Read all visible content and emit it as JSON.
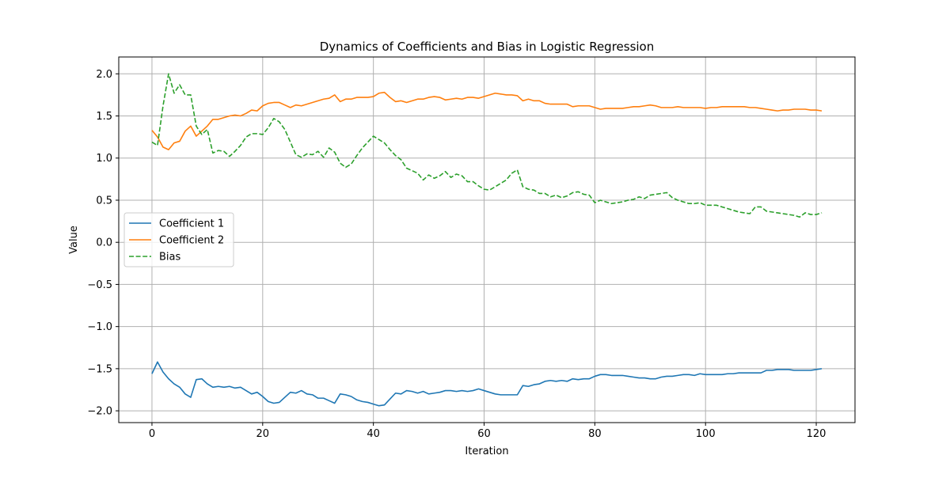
{
  "chart_data": {
    "type": "line",
    "title": "Dynamics of Coefficients and Bias in Logistic Regression",
    "xlabel": "Iteration",
    "ylabel": "Value",
    "xlim": [
      -6,
      127
    ],
    "ylim": [
      -2.14,
      2.2
    ],
    "x_ticks": [
      0,
      20,
      40,
      60,
      80,
      100,
      120
    ],
    "x_tick_labels": [
      "0",
      "20",
      "40",
      "60",
      "80",
      "100",
      "120"
    ],
    "y_ticks": [
      -2.0,
      -1.5,
      -1.0,
      -0.5,
      0.0,
      0.5,
      1.0,
      1.5,
      2.0
    ],
    "y_tick_labels": [
      "−2.0",
      "−1.5",
      "−1.0",
      "−0.5",
      "0.0",
      "0.5",
      "1.0",
      "1.5",
      "2.0"
    ],
    "grid": true,
    "legend_position": "center-left",
    "x": [
      0,
      1,
      2,
      3,
      4,
      5,
      6,
      7,
      8,
      9,
      10,
      11,
      12,
      13,
      14,
      15,
      16,
      17,
      18,
      19,
      20,
      21,
      22,
      23,
      24,
      25,
      26,
      27,
      28,
      29,
      30,
      31,
      32,
      33,
      34,
      35,
      36,
      37,
      38,
      39,
      40,
      41,
      42,
      43,
      44,
      45,
      46,
      47,
      48,
      49,
      50,
      51,
      52,
      53,
      54,
      55,
      56,
      57,
      58,
      59,
      60,
      61,
      62,
      63,
      64,
      65,
      66,
      67,
      68,
      69,
      70,
      71,
      72,
      73,
      74,
      75,
      76,
      77,
      78,
      79,
      80,
      81,
      82,
      83,
      84,
      85,
      86,
      87,
      88,
      89,
      90,
      91,
      92,
      93,
      94,
      95,
      96,
      97,
      98,
      99,
      100,
      101,
      102,
      103,
      104,
      105,
      106,
      107,
      108,
      109,
      110,
      111,
      112,
      113,
      114,
      115,
      116,
      117,
      118,
      119,
      120,
      121
    ],
    "series": [
      {
        "name": "Coefficient 1",
        "color": "#1f77b4",
        "style": "solid",
        "values": [
          -1.56,
          -1.42,
          -1.54,
          -1.62,
          -1.68,
          -1.72,
          -1.8,
          -1.84,
          -1.63,
          -1.62,
          -1.68,
          -1.72,
          -1.71,
          -1.72,
          -1.71,
          -1.73,
          -1.72,
          -1.76,
          -1.8,
          -1.78,
          -1.83,
          -1.89,
          -1.91,
          -1.9,
          -1.84,
          -1.78,
          -1.79,
          -1.76,
          -1.8,
          -1.81,
          -1.85,
          -1.85,
          -1.88,
          -1.91,
          -1.8,
          -1.81,
          -1.83,
          -1.87,
          -1.89,
          -1.9,
          -1.92,
          -1.94,
          -1.93,
          -1.86,
          -1.79,
          -1.8,
          -1.76,
          -1.77,
          -1.79,
          -1.77,
          -1.8,
          -1.79,
          -1.78,
          -1.76,
          -1.76,
          -1.77,
          -1.76,
          -1.77,
          -1.76,
          -1.74,
          -1.76,
          -1.78,
          -1.8,
          -1.81,
          -1.81,
          -1.81,
          -1.81,
          -1.7,
          -1.71,
          -1.69,
          -1.68,
          -1.65,
          -1.64,
          -1.65,
          -1.64,
          -1.65,
          -1.62,
          -1.63,
          -1.62,
          -1.62,
          -1.59,
          -1.57,
          -1.57,
          -1.58,
          -1.58,
          -1.58,
          -1.59,
          -1.6,
          -1.61,
          -1.61,
          -1.62,
          -1.62,
          -1.6,
          -1.59,
          -1.59,
          -1.58,
          -1.57,
          -1.57,
          -1.58,
          -1.56,
          -1.57,
          -1.57,
          -1.57,
          -1.57,
          -1.56,
          -1.56,
          -1.55,
          -1.55,
          -1.55,
          -1.55,
          -1.55,
          -1.52,
          -1.52,
          -1.51,
          -1.51,
          -1.51,
          -1.52,
          -1.52,
          -1.52,
          -1.52,
          -1.51,
          -1.5
        ]
      },
      {
        "name": "Coefficient 2",
        "color": "#ff7f0e",
        "style": "solid",
        "values": [
          1.33,
          1.25,
          1.13,
          1.1,
          1.18,
          1.2,
          1.32,
          1.38,
          1.26,
          1.32,
          1.38,
          1.46,
          1.46,
          1.48,
          1.5,
          1.51,
          1.5,
          1.53,
          1.57,
          1.56,
          1.62,
          1.65,
          1.66,
          1.66,
          1.63,
          1.6,
          1.63,
          1.62,
          1.64,
          1.66,
          1.68,
          1.7,
          1.71,
          1.75,
          1.67,
          1.7,
          1.7,
          1.72,
          1.72,
          1.72,
          1.73,
          1.77,
          1.78,
          1.72,
          1.67,
          1.68,
          1.66,
          1.68,
          1.7,
          1.7,
          1.72,
          1.73,
          1.72,
          1.69,
          1.7,
          1.71,
          1.7,
          1.72,
          1.72,
          1.71,
          1.73,
          1.75,
          1.77,
          1.76,
          1.75,
          1.75,
          1.74,
          1.68,
          1.7,
          1.68,
          1.68,
          1.65,
          1.64,
          1.64,
          1.64,
          1.64,
          1.61,
          1.62,
          1.62,
          1.62,
          1.6,
          1.58,
          1.59,
          1.59,
          1.59,
          1.59,
          1.6,
          1.61,
          1.61,
          1.62,
          1.63,
          1.62,
          1.6,
          1.6,
          1.6,
          1.61,
          1.6,
          1.6,
          1.6,
          1.6,
          1.59,
          1.6,
          1.6,
          1.61,
          1.61,
          1.61,
          1.61,
          1.61,
          1.6,
          1.6,
          1.59,
          1.58,
          1.57,
          1.56,
          1.57,
          1.57,
          1.58,
          1.58,
          1.58,
          1.57,
          1.57,
          1.56
        ]
      },
      {
        "name": "Bias",
        "color": "#2ca02c",
        "style": "dashed",
        "values": [
          1.19,
          1.15,
          1.62,
          2.0,
          1.77,
          1.87,
          1.75,
          1.75,
          1.38,
          1.28,
          1.34,
          1.06,
          1.09,
          1.08,
          1.02,
          1.08,
          1.15,
          1.25,
          1.29,
          1.29,
          1.28,
          1.36,
          1.47,
          1.43,
          1.34,
          1.19,
          1.04,
          1.01,
          1.05,
          1.04,
          1.08,
          1.01,
          1.12,
          1.07,
          0.94,
          0.89,
          0.93,
          1.03,
          1.12,
          1.19,
          1.26,
          1.22,
          1.18,
          1.1,
          1.03,
          0.98,
          0.88,
          0.85,
          0.82,
          0.74,
          0.8,
          0.76,
          0.79,
          0.84,
          0.77,
          0.81,
          0.79,
          0.72,
          0.72,
          0.67,
          0.63,
          0.62,
          0.66,
          0.7,
          0.74,
          0.82,
          0.86,
          0.66,
          0.63,
          0.62,
          0.58,
          0.58,
          0.54,
          0.56,
          0.53,
          0.55,
          0.59,
          0.6,
          0.57,
          0.56,
          0.47,
          0.5,
          0.48,
          0.46,
          0.47,
          0.48,
          0.5,
          0.51,
          0.54,
          0.52,
          0.56,
          0.57,
          0.58,
          0.59,
          0.53,
          0.5,
          0.48,
          0.46,
          0.46,
          0.47,
          0.44,
          0.44,
          0.44,
          0.42,
          0.4,
          0.38,
          0.36,
          0.35,
          0.34,
          0.42,
          0.42,
          0.37,
          0.36,
          0.35,
          0.34,
          0.33,
          0.32,
          0.3,
          0.35,
          0.33,
          0.33,
          0.35
        ]
      }
    ]
  }
}
